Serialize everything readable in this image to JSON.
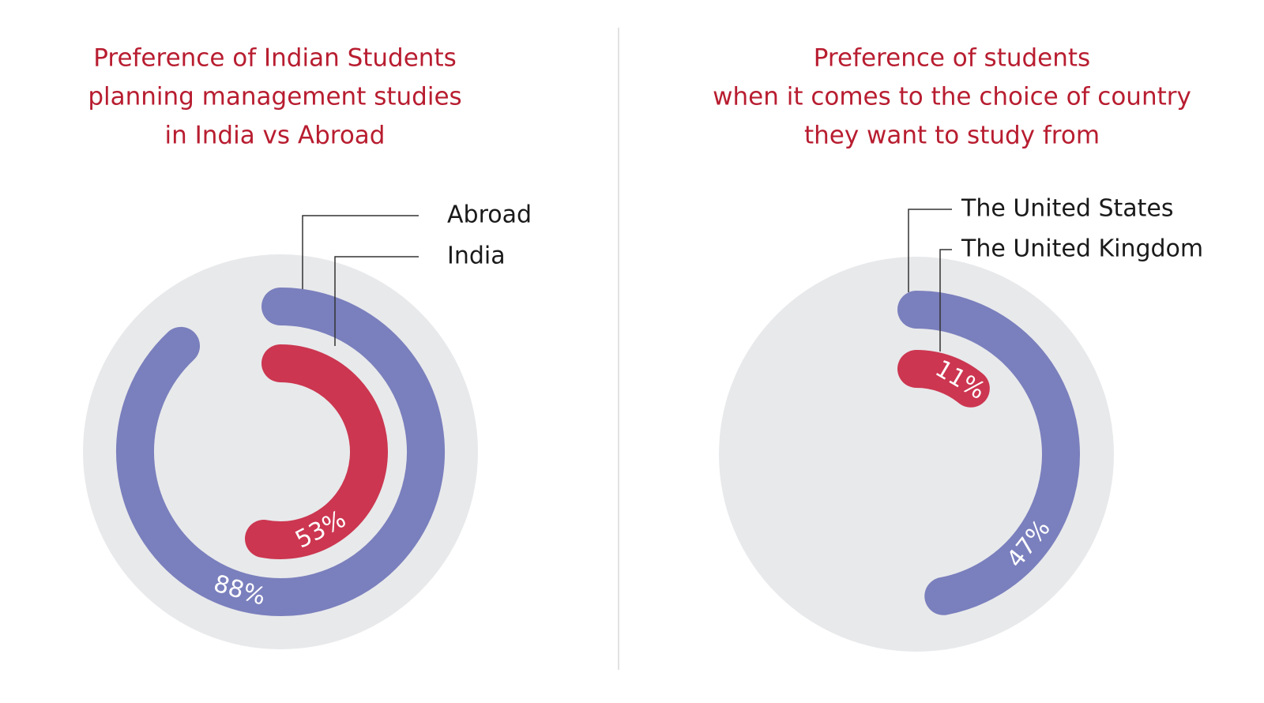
{
  "chart_data": [
    {
      "type": "radial_bar",
      "title": [
        "Preference of Indian Students",
        "planning management studies",
        "in India vs Abroad"
      ],
      "categories": [
        "Abroad",
        "India"
      ],
      "values": [
        88,
        53
      ],
      "value_labels": [
        "88%",
        "53%"
      ],
      "colors": [
        "#7a7fbd",
        "#cc3650"
      ],
      "rlim": [
        0,
        100
      ]
    },
    {
      "type": "radial_bar",
      "title": [
        "Preference of students",
        "when it comes to the choice of country",
        "they want to study from"
      ],
      "categories": [
        "The United States",
        "The United Kingdom"
      ],
      "values": [
        47,
        11
      ],
      "value_labels": [
        "47%",
        "11%"
      ],
      "colors": [
        "#7a7fbd",
        "#cc3650"
      ],
      "rlim": [
        0,
        100
      ]
    }
  ]
}
